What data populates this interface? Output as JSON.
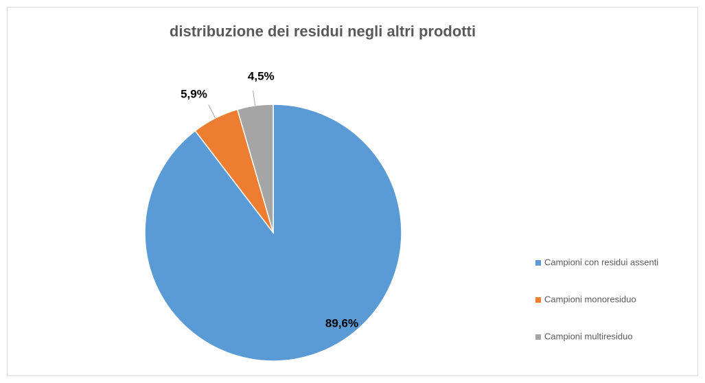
{
  "chart_data": {
    "type": "pie",
    "title": "distribuzione dei residui negli altri prodotti",
    "categories": [
      "Campioni con residui assenti",
      "Campioni monoresiduo",
      "Campioni multiresiduo"
    ],
    "values": [
      89.6,
      5.9,
      4.5
    ],
    "value_labels": [
      "89,6%",
      "5,9%",
      "4,5%"
    ],
    "colors": [
      "#5b9bd5",
      "#ed7d31",
      "#a5a5a5"
    ],
    "legend": "right"
  }
}
